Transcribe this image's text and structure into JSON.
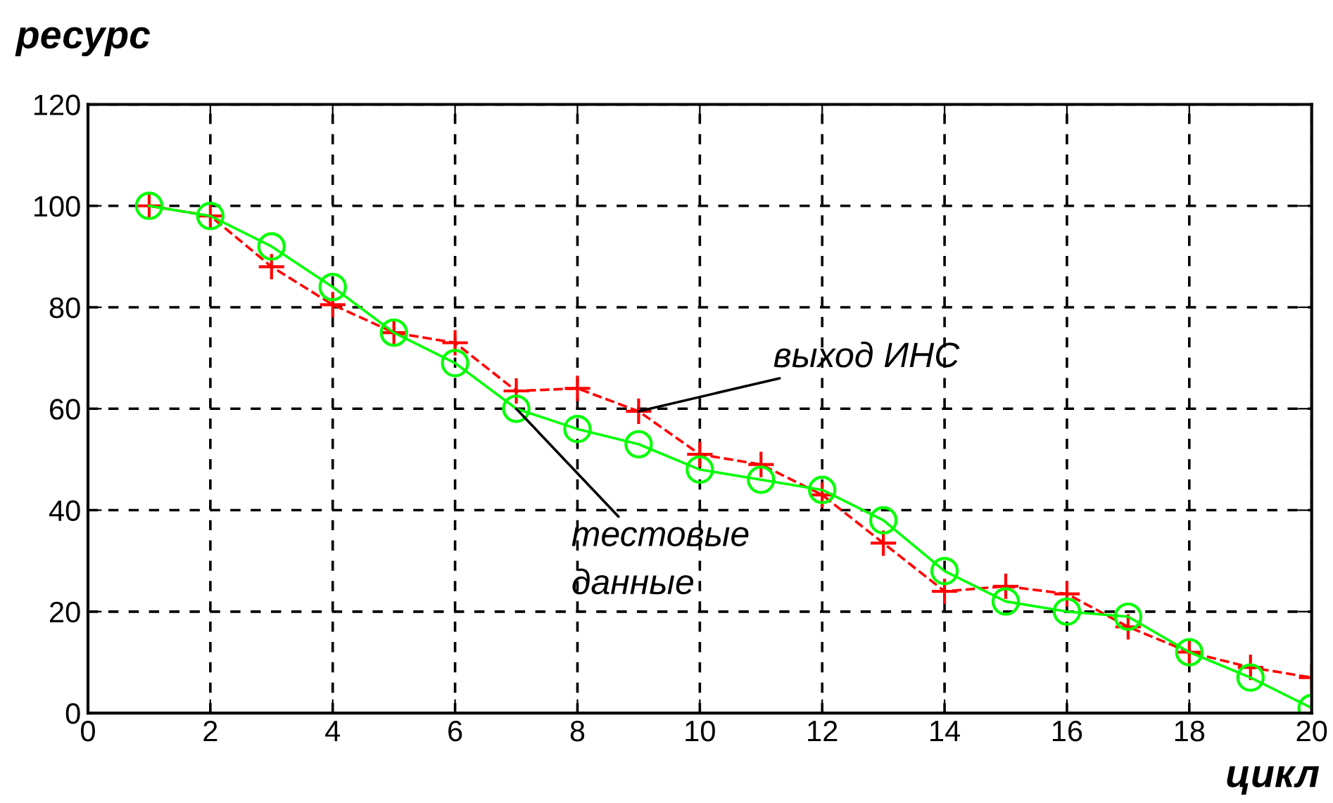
{
  "chart_data": {
    "type": "line",
    "title": "ресурс",
    "xlabel": "цикл",
    "x": [
      1,
      2,
      3,
      4,
      5,
      6,
      7,
      8,
      9,
      10,
      11,
      12,
      13,
      14,
      15,
      16,
      17,
      18,
      19,
      20
    ],
    "series": [
      {
        "color": "#ff0000",
        "marker": "cross",
        "line_style": "dashed",
        "values": [
          100,
          98,
          88,
          80.5,
          75,
          73,
          63.5,
          64,
          59.5,
          51,
          49,
          43,
          33.5,
          24,
          25,
          23.5,
          17,
          12,
          9,
          7
        ]
      },
      {
        "color": "#00ff00",
        "marker": "circle",
        "line_style": "solid",
        "values": [
          100,
          98,
          92,
          84,
          75,
          69,
          60,
          56,
          53,
          48,
          46,
          44,
          38,
          28,
          22,
          20,
          19,
          12,
          7,
          1
        ]
      }
    ],
    "annotations": [
      {
        "text": "выход ИНС",
        "x": 9,
        "y": 59.5
      },
      {
        "text": "тестовые\nданные",
        "x": 7,
        "y": 60
      }
    ],
    "xlim": [
      0,
      20
    ],
    "ylim": [
      0,
      120
    ],
    "xticks": [
      0,
      2,
      4,
      6,
      8,
      10,
      12,
      14,
      16,
      18,
      20
    ],
    "yticks": [
      0,
      20,
      40,
      60,
      80,
      100,
      120
    ],
    "grid": true,
    "legend": false
  }
}
